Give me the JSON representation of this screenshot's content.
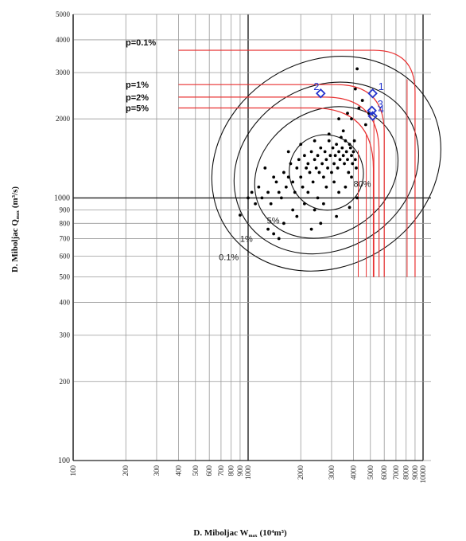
{
  "chart_data": {
    "type": "scatter",
    "xlabel": "D. Miboljac W",
    "xlabel_sub": "max",
    "xlabel_unit": "(10⁴m³)",
    "ylabel": "D. Miboljac Q",
    "ylabel_sub": "max",
    "ylabel_unit": "(m³/s)",
    "x_scale": "log",
    "y_scale": "log",
    "xlim": [
      100,
      10000
    ],
    "ylim": [
      100,
      5000
    ],
    "grid": true,
    "x_ticks": [
      100,
      200,
      300,
      400,
      500,
      600,
      700,
      800,
      900,
      1000,
      2000,
      3000,
      4000,
      5000,
      6000,
      7000,
      8000,
      9000,
      10000
    ],
    "x_tick_labels": [
      "100",
      "200",
      "300",
      "400",
      "500",
      "600",
      "700",
      "800",
      "900",
      "1000",
      "2000",
      "3000",
      "4000",
      "5000",
      "6000",
      "7000",
      "8000",
      "9000",
      "10000"
    ],
    "y_ticks": [
      100,
      200,
      300,
      400,
      500,
      600,
      700,
      800,
      900,
      1000,
      2000,
      3000,
      4000,
      5000
    ],
    "y_tick_labels": [
      "100",
      "200",
      "300",
      "400",
      "500",
      "600",
      "700",
      "800",
      "900",
      "1000",
      "2000",
      "3000",
      "4000",
      "5000"
    ],
    "return_period_curves": [
      {
        "label": "p=0.1%",
        "q": 3650,
        "x_end": 9000,
        "color": "#e83030"
      },
      {
        "label": "p=1%",
        "q": 2700,
        "x_end": 6000,
        "color": "#e83030"
      },
      {
        "label": "p=2%",
        "q": 2420,
        "x_end": 5600,
        "color": "#e83030"
      },
      {
        "label": "p=5%",
        "q": 2200,
        "x_end": 5200,
        "color": "#e83030"
      }
    ],
    "contours": [
      {
        "label": "80%",
        "cx": 2800,
        "cy": 1250,
        "rx": 0.21,
        "ry": 0.145,
        "angle": -32
      },
      {
        "label": "5%",
        "cx": 2800,
        "cy": 1250,
        "rx": 0.43,
        "ry": 0.235,
        "angle": -32
      },
      {
        "label": "1%",
        "cx": 2800,
        "cy": 1300,
        "rx": 0.55,
        "ry": 0.31,
        "angle": -32
      },
      {
        "label": "0.1%",
        "cx": 2800,
        "cy": 1350,
        "rx": 0.68,
        "ry": 0.39,
        "angle": -32
      }
    ],
    "contour_labels": [
      {
        "text": "80%",
        "x": 4000,
        "y": 1100
      },
      {
        "text": "5%",
        "x": 1280,
        "y": 800
      },
      {
        "text": "1%",
        "x": 900,
        "y": 680
      },
      {
        "text": "0.1%",
        "x": 680,
        "y": 580
      }
    ],
    "marked_points": [
      {
        "label": "2",
        "x": 2600,
        "y": 2500
      },
      {
        "label": "1",
        "x": 5150,
        "y": 2500
      },
      {
        "label": "3",
        "x": 5100,
        "y": 2150
      },
      {
        "label": "4",
        "x": 5150,
        "y": 2050
      }
    ],
    "observations": [
      [
        1000,
        1000
      ],
      [
        1050,
        1050
      ],
      [
        1100,
        950
      ],
      [
        1150,
        1100
      ],
      [
        1200,
        1000
      ],
      [
        1250,
        1300
      ],
      [
        1300,
        1050
      ],
      [
        1350,
        950
      ],
      [
        1400,
        1200
      ],
      [
        1450,
        1150
      ],
      [
        1500,
        1050
      ],
      [
        1550,
        1000
      ],
      [
        1600,
        1250
      ],
      [
        1650,
        1100
      ],
      [
        1700,
        1200
      ],
      [
        1750,
        1350
      ],
      [
        1800,
        1150
      ],
      [
        1850,
        1050
      ],
      [
        1900,
        1300
      ],
      [
        1950,
        1400
      ],
      [
        2000,
        1200
      ],
      [
        2050,
        1100
      ],
      [
        2100,
        1450
      ],
      [
        2150,
        1300
      ],
      [
        2200,
        1350
      ],
      [
        2250,
        1250
      ],
      [
        2300,
        1500
      ],
      [
        2350,
        1150
      ],
      [
        2400,
        1400
      ],
      [
        2450,
        1300
      ],
      [
        2500,
        1450
      ],
      [
        2550,
        1250
      ],
      [
        2600,
        1550
      ],
      [
        2650,
        1350
      ],
      [
        2700,
        1200
      ],
      [
        2750,
        1500
      ],
      [
        2800,
        1400
      ],
      [
        2850,
        1300
      ],
      [
        2900,
        1650
      ],
      [
        2950,
        1450
      ],
      [
        3000,
        1250
      ],
      [
        3050,
        1550
      ],
      [
        3100,
        1350
      ],
      [
        3150,
        1450
      ],
      [
        3200,
        1600
      ],
      [
        3250,
        1300
      ],
      [
        3300,
        1500
      ],
      [
        3350,
        1400
      ],
      [
        3400,
        1700
      ],
      [
        3450,
        1550
      ],
      [
        3500,
        1450
      ],
      [
        3550,
        1350
      ],
      [
        3600,
        1650
      ],
      [
        3650,
        1500
      ],
      [
        3700,
        1400
      ],
      [
        3750,
        1250
      ],
      [
        3800,
        1600
      ],
      [
        3850,
        1550
      ],
      [
        3900,
        1450
      ],
      [
        3950,
        1350
      ],
      [
        4000,
        1500
      ],
      [
        4050,
        1650
      ],
      [
        4100,
        1400
      ],
      [
        4150,
        1300
      ],
      [
        2200,
        1050
      ],
      [
        2500,
        1000
      ],
      [
        2800,
        1100
      ],
      [
        3100,
        1150
      ],
      [
        1800,
        900
      ],
      [
        2100,
        950
      ],
      [
        2400,
        900
      ],
      [
        2700,
        950
      ],
      [
        3300,
        1050
      ],
      [
        3600,
        1100
      ],
      [
        3900,
        1200
      ],
      [
        4200,
        1000
      ],
      [
        1600,
        800
      ],
      [
        1900,
        850
      ],
      [
        2600,
        800
      ],
      [
        3200,
        850
      ],
      [
        3800,
        920
      ],
      [
        1300,
        760
      ],
      [
        1400,
        730
      ],
      [
        1500,
        700
      ],
      [
        2300,
        760
      ],
      [
        1700,
        1500
      ],
      [
        2000,
        1600
      ],
      [
        2400,
        1650
      ],
      [
        2900,
        1750
      ],
      [
        3500,
        1800
      ],
      [
        3300,
        2000
      ],
      [
        3700,
        2100
      ],
      [
        4300,
        2200
      ],
      [
        4200,
        3100
      ],
      [
        4100,
        2600
      ],
      [
        4500,
        2350
      ],
      [
        4900,
        2100
      ],
      [
        4700,
        1900
      ],
      [
        3900,
        2000
      ],
      [
        900,
        860
      ]
    ]
  }
}
